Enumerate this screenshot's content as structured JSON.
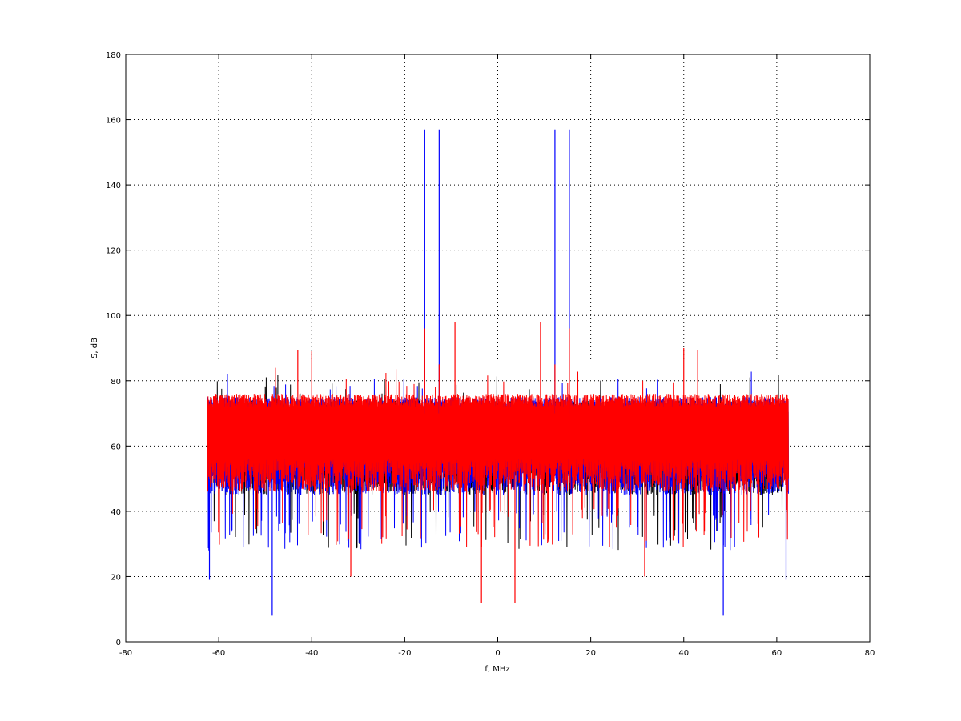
{
  "chart_data": {
    "type": "line",
    "title": "",
    "xlabel": "f, MHz",
    "ylabel": "S, dB",
    "xlim": [
      -80,
      80
    ],
    "ylim": [
      0,
      180
    ],
    "xticks": [
      -80,
      -60,
      -40,
      -20,
      0,
      20,
      40,
      60,
      80
    ],
    "yticks": [
      0,
      20,
      40,
      60,
      80,
      100,
      120,
      140,
      160,
      180
    ],
    "grid": true,
    "legend": "none",
    "x_span": [
      -62.5,
      62.5
    ],
    "series": [
      {
        "color": "#000000",
        "noise_floor_db": [
          45,
          74
        ]
      },
      {
        "color": "#0000ff",
        "noise_floor_db": [
          45,
          75
        ],
        "peaks": [
          {
            "x": -15.7,
            "y": 157
          },
          {
            "x": -12.6,
            "y": 157
          },
          {
            "x": 12.3,
            "y": 157
          },
          {
            "x": 15.4,
            "y": 157
          }
        ],
        "dips": [
          {
            "x": -48.5,
            "y": 8
          },
          {
            "x": 48.5,
            "y": 8
          },
          {
            "x": -62,
            "y": 19
          },
          {
            "x": 62,
            "y": 19
          }
        ]
      },
      {
        "color": "#ff0000",
        "noise_floor_db": [
          46,
          76
        ],
        "peaks": [
          {
            "x": -9.2,
            "y": 98
          },
          {
            "x": 9.2,
            "y": 98
          },
          {
            "x": -15.7,
            "y": 96
          },
          {
            "x": 15.4,
            "y": 96
          },
          {
            "x": -43,
            "y": 89.5
          },
          {
            "x": 43,
            "y": 89.5
          },
          {
            "x": -40,
            "y": 89
          },
          {
            "x": 40,
            "y": 90
          },
          {
            "x": -12.6,
            "y": 85
          },
          {
            "x": 12.3,
            "y": 85
          }
        ],
        "dips": [
          {
            "x": -3.5,
            "y": 12
          },
          {
            "x": 3.7,
            "y": 12
          },
          {
            "x": -31.6,
            "y": 20
          },
          {
            "x": 31.6,
            "y": 20
          }
        ]
      }
    ]
  }
}
